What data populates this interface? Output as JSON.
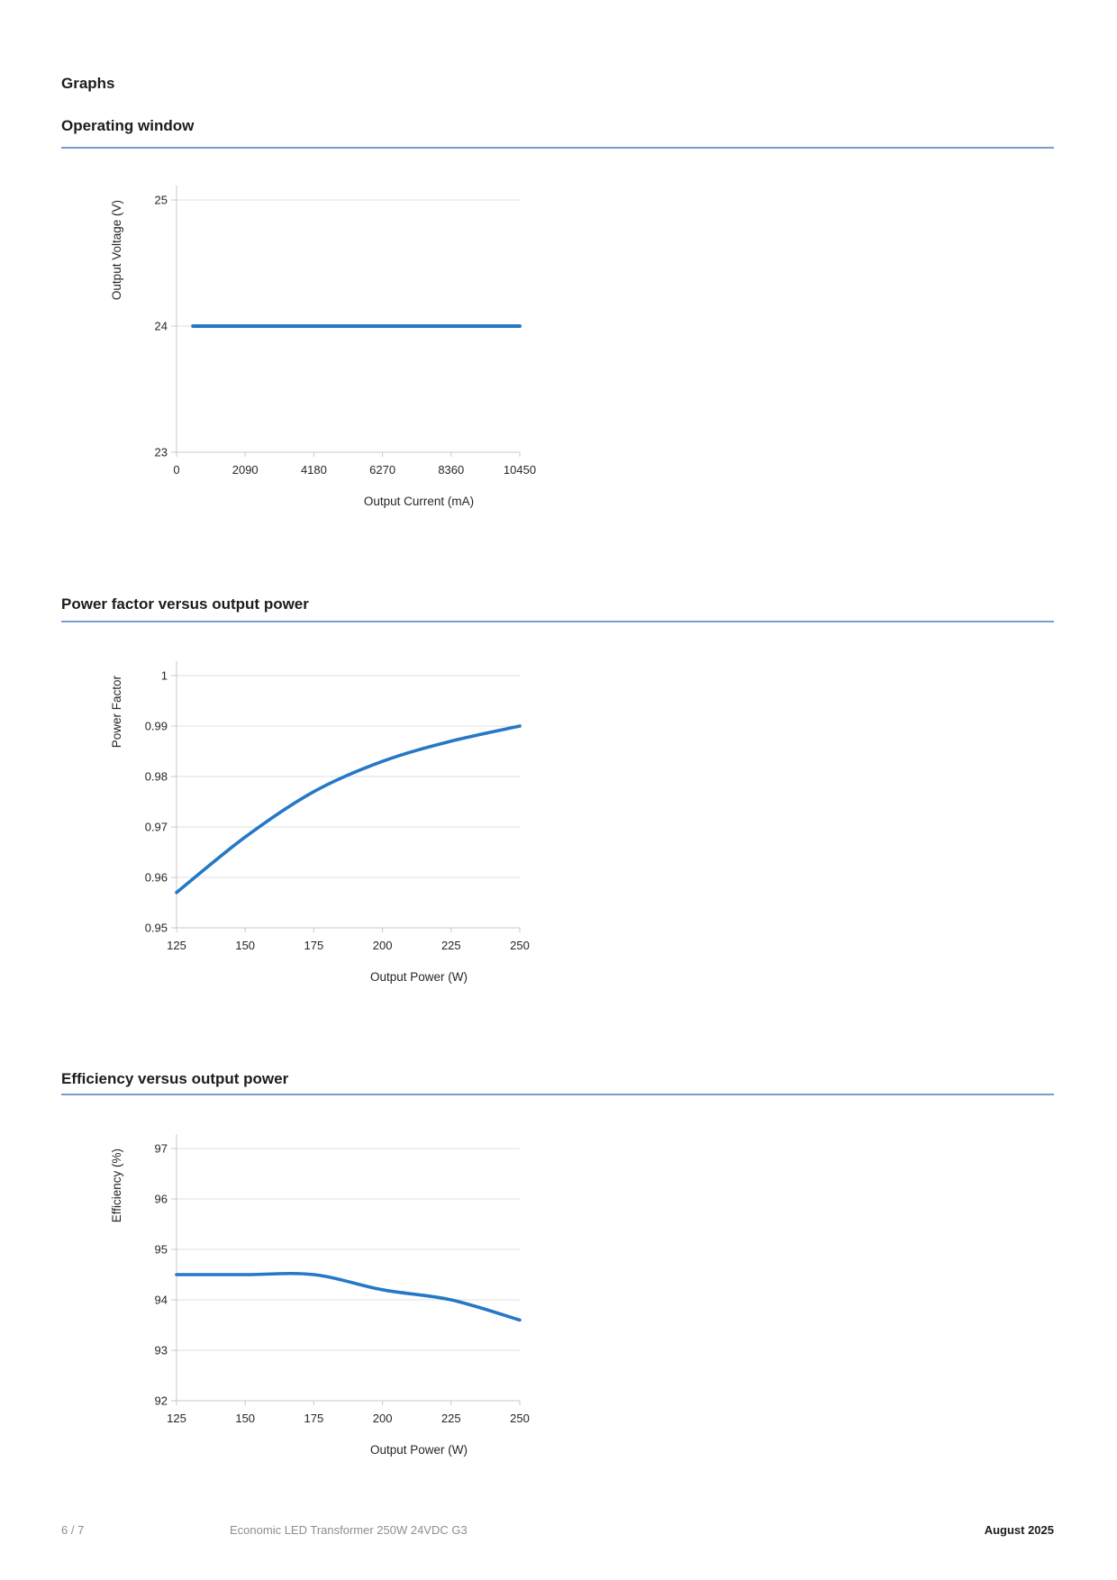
{
  "page": {
    "title": "Graphs",
    "footer": {
      "page_number": "6 / 7",
      "product": "Economic LED Transformer 250W 24VDC G3",
      "date": "August 2025"
    }
  },
  "colors": {
    "line": "#2478C6",
    "rule": "#7A9CD0",
    "grid": "#DFDFDF",
    "axis": "#C9C9C9",
    "text": "#1C1C1C",
    "muted": "#8E8E8E"
  },
  "sections": [
    {
      "heading": "Operating window"
    },
    {
      "heading": "Power factor versus output power"
    },
    {
      "heading": "Efficiency versus output power"
    }
  ],
  "chart_data": [
    {
      "type": "line",
      "title": "Operating window",
      "xlabel": "Output Current (mA)",
      "ylabel": "Output Voltage (V)",
      "x": [
        500,
        10450
      ],
      "y": [
        24,
        24
      ],
      "xticks": [
        0,
        2090,
        4180,
        6270,
        8360,
        10450
      ],
      "xtick_labels": [
        "0",
        "2090",
        "4180",
        "6270",
        "8360",
        "10450"
      ],
      "yticks": [
        23,
        24,
        25
      ],
      "ytick_labels": [
        "23",
        "24",
        "25"
      ],
      "xlim": [
        0,
        10450
      ],
      "ylim": [
        23,
        25
      ],
      "grid": "horizontal",
      "legend": "none"
    },
    {
      "type": "line",
      "title": "Power factor versus output power",
      "xlabel": "Output Power (W)",
      "ylabel": "Power Factor",
      "x": [
        125,
        150,
        175,
        200,
        225,
        250
      ],
      "y": [
        0.957,
        0.968,
        0.977,
        0.983,
        0.987,
        0.99
      ],
      "xticks": [
        125,
        150,
        175,
        200,
        225,
        250
      ],
      "xtick_labels": [
        "125",
        "150",
        "175",
        "200",
        "225",
        "250"
      ],
      "yticks": [
        0.95,
        0.96,
        0.97,
        0.98,
        0.99,
        1
      ],
      "ytick_labels": [
        "0.95",
        "0.96",
        "0.97",
        "0.98",
        "0.99",
        "1"
      ],
      "xlim": [
        125,
        250
      ],
      "ylim": [
        0.95,
        1
      ],
      "grid": "horizontal",
      "legend": "none"
    },
    {
      "type": "line",
      "title": "Efficiency versus output power",
      "xlabel": "Output Power (W)",
      "ylabel": "Efficiency (%)",
      "x": [
        125,
        150,
        175,
        200,
        225,
        250
      ],
      "y": [
        94.5,
        94.5,
        94.5,
        94.2,
        94.0,
        93.6
      ],
      "xticks": [
        125,
        150,
        175,
        200,
        225,
        250
      ],
      "xtick_labels": [
        "125",
        "150",
        "175",
        "200",
        "225",
        "250"
      ],
      "yticks": [
        92,
        93,
        94,
        95,
        96,
        97
      ],
      "ytick_labels": [
        "92",
        "93",
        "94",
        "95",
        "96",
        "97"
      ],
      "xlim": [
        125,
        250
      ],
      "ylim": [
        92,
        97
      ],
      "grid": "horizontal",
      "legend": "none"
    }
  ]
}
